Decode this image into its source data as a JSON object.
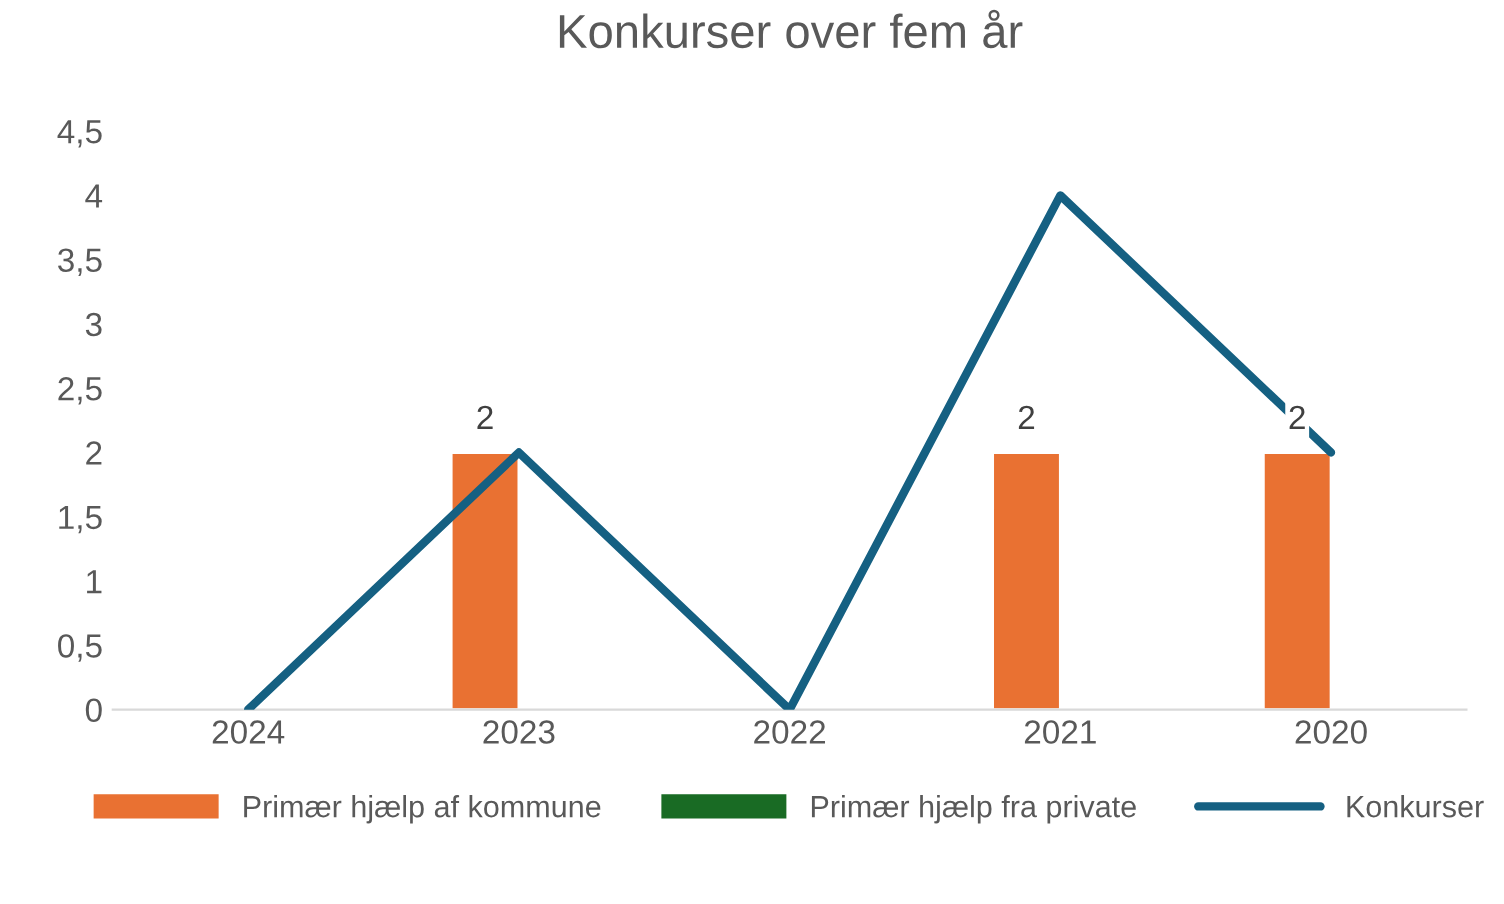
{
  "chart_data": {
    "type": "bar",
    "title": "Konkurser over fem år",
    "categories": [
      "2024",
      "2023",
      "2022",
      "2021",
      "2020"
    ],
    "series": [
      {
        "name": "Primær hjælp af kommune",
        "color": "#e97132",
        "values": [
          null,
          2,
          null,
          2,
          2
        ],
        "value_labels": [
          null,
          "2",
          null,
          "2",
          "2"
        ]
      },
      {
        "name": "Primær hjælp fra private",
        "color": "#196b24",
        "values": [
          null,
          null,
          null,
          null,
          null
        ]
      },
      {
        "name": "Konkurser",
        "type": "line",
        "color": "#156082",
        "values": [
          0,
          2,
          0,
          4,
          2
        ]
      }
    ],
    "ylim": [
      0,
      4.5
    ],
    "yticks": [
      0,
      {
        "value": 0.5,
        "label": "0,5"
      },
      1,
      {
        "value": 1.5,
        "label": "1,5"
      },
      2,
      {
        "value": 2.5,
        "label": "2,5"
      },
      3,
      {
        "value": 3.5,
        "label": "3,5"
      },
      4,
      {
        "value": 4.5,
        "label": "4,5"
      }
    ],
    "grid": false,
    "legend": "bottom"
  }
}
